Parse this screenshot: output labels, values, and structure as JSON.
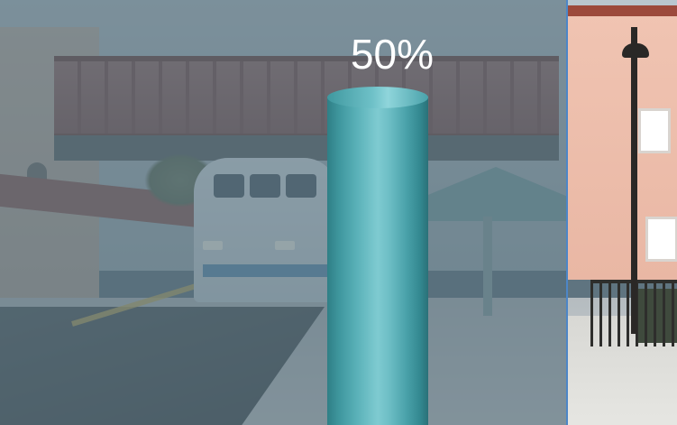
{
  "progress": {
    "label": "50%",
    "value": 0.5,
    "color": "#5bb2b9"
  },
  "colors": {
    "overlay": "#566d7a",
    "divider": "#4d86c7",
    "label_text": "#ffffff"
  }
}
